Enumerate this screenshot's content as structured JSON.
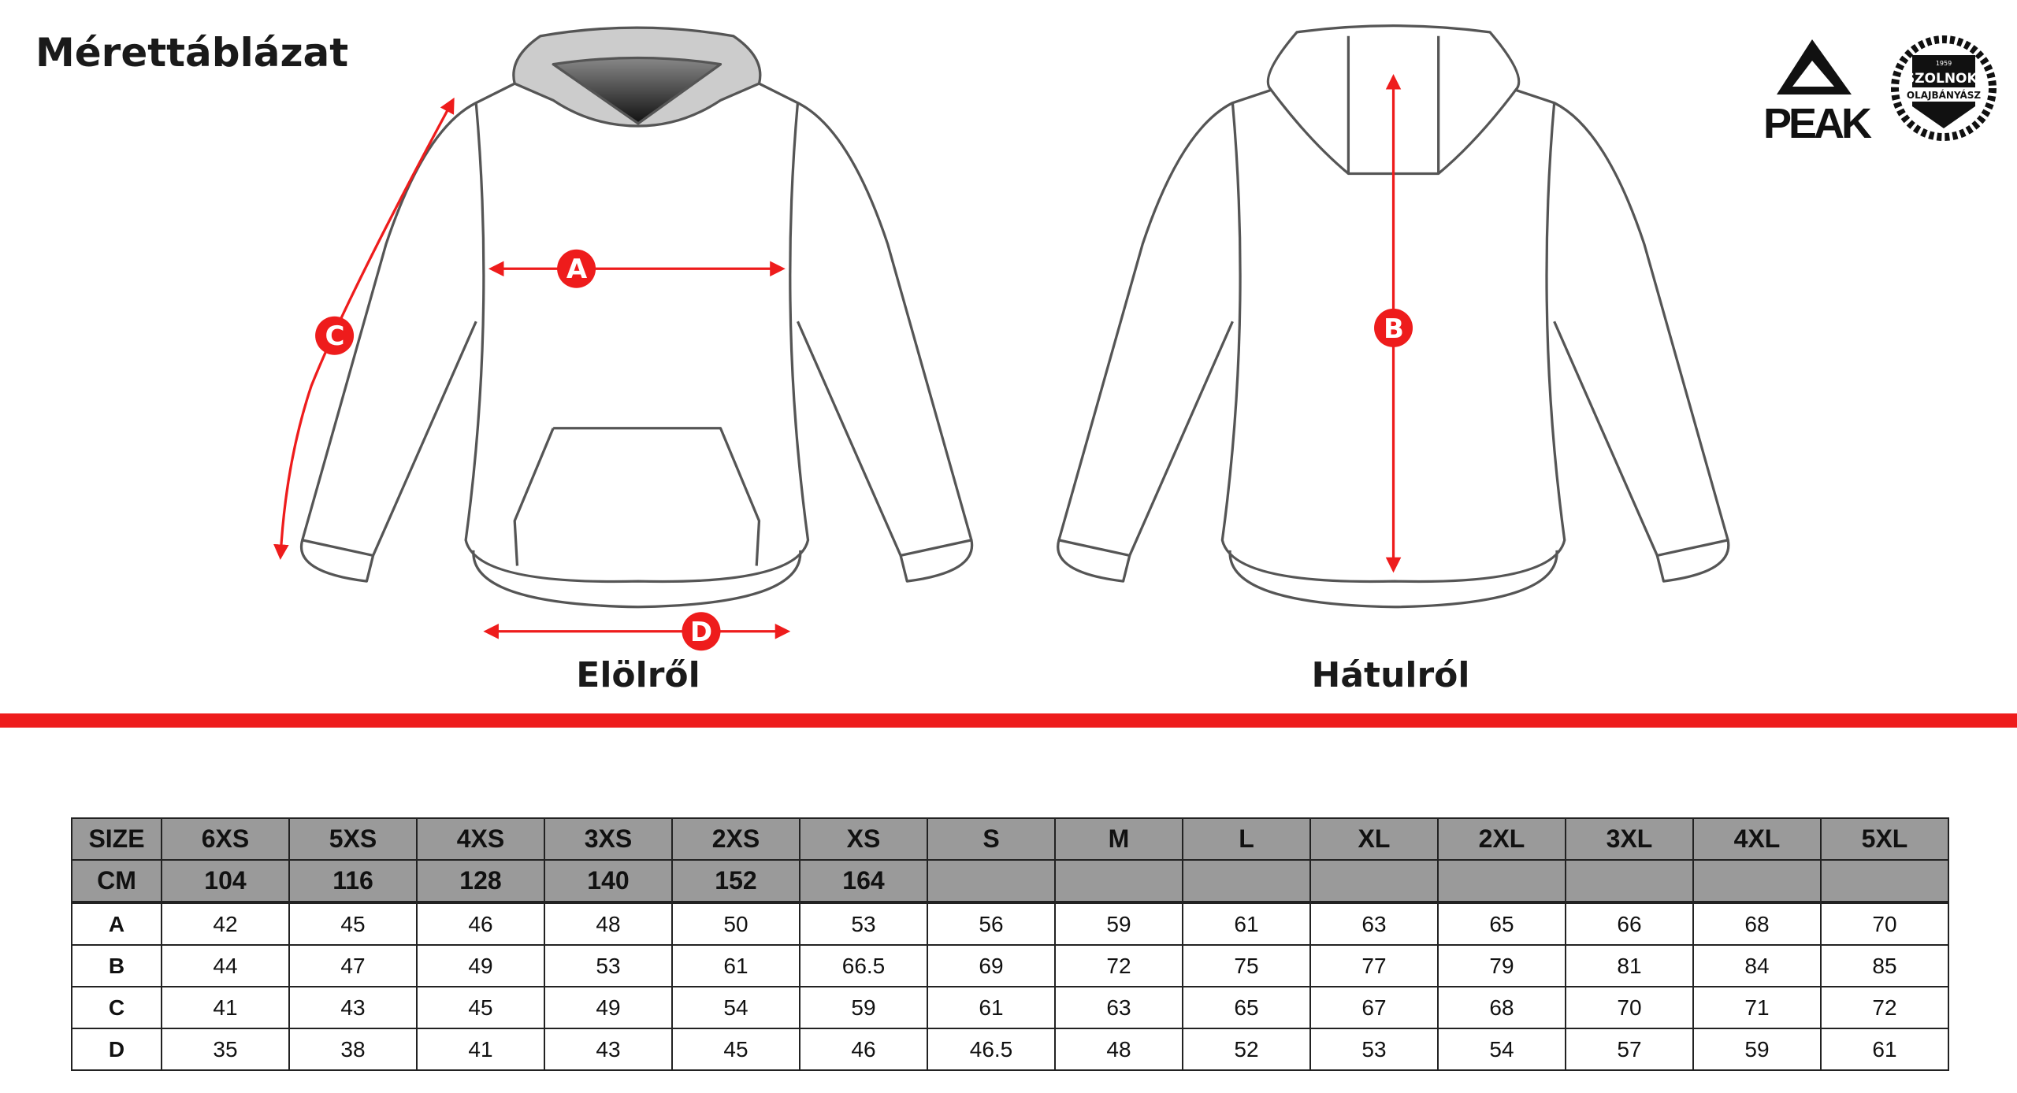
{
  "title": "Mérettáblázat",
  "front_caption": "Elölről",
  "back_caption": "Hátulról",
  "markers": {
    "a": "A",
    "b": "B",
    "c": "C",
    "d": "D"
  },
  "colors": {
    "accent": "#ee1c1c",
    "header_bg": "#9a9a9a",
    "outline": "#555555"
  },
  "logos": {
    "brand": "PEAK",
    "club_line1": "SZOLNOKI",
    "club_line2": "OLAJBÁNYÁSZ",
    "club_year": "1959"
  },
  "table": {
    "header": [
      "SIZE",
      "6XS",
      "5XS",
      "4XS",
      "3XS",
      "2XS",
      "XS",
      "S",
      "M",
      "L",
      "XL",
      "2XL",
      "3XL",
      "4XL",
      "5XL"
    ],
    "cm": [
      "CM",
      "104",
      "116",
      "128",
      "140",
      "152",
      "164",
      "",
      "",
      "",
      "",
      "",
      "",
      "",
      ""
    ],
    "rows": [
      [
        "A",
        "42",
        "45",
        "46",
        "48",
        "50",
        "53",
        "56",
        "59",
        "61",
        "63",
        "65",
        "66",
        "68",
        "70"
      ],
      [
        "B",
        "44",
        "47",
        "49",
        "53",
        "61",
        "66.5",
        "69",
        "72",
        "75",
        "77",
        "79",
        "81",
        "84",
        "85"
      ],
      [
        "C",
        "41",
        "43",
        "45",
        "49",
        "54",
        "59",
        "61",
        "63",
        "65",
        "67",
        "68",
        "70",
        "71",
        "72"
      ],
      [
        "D",
        "35",
        "38",
        "41",
        "43",
        "45",
        "46",
        "46.5",
        "48",
        "52",
        "53",
        "54",
        "57",
        "59",
        "61"
      ]
    ]
  }
}
